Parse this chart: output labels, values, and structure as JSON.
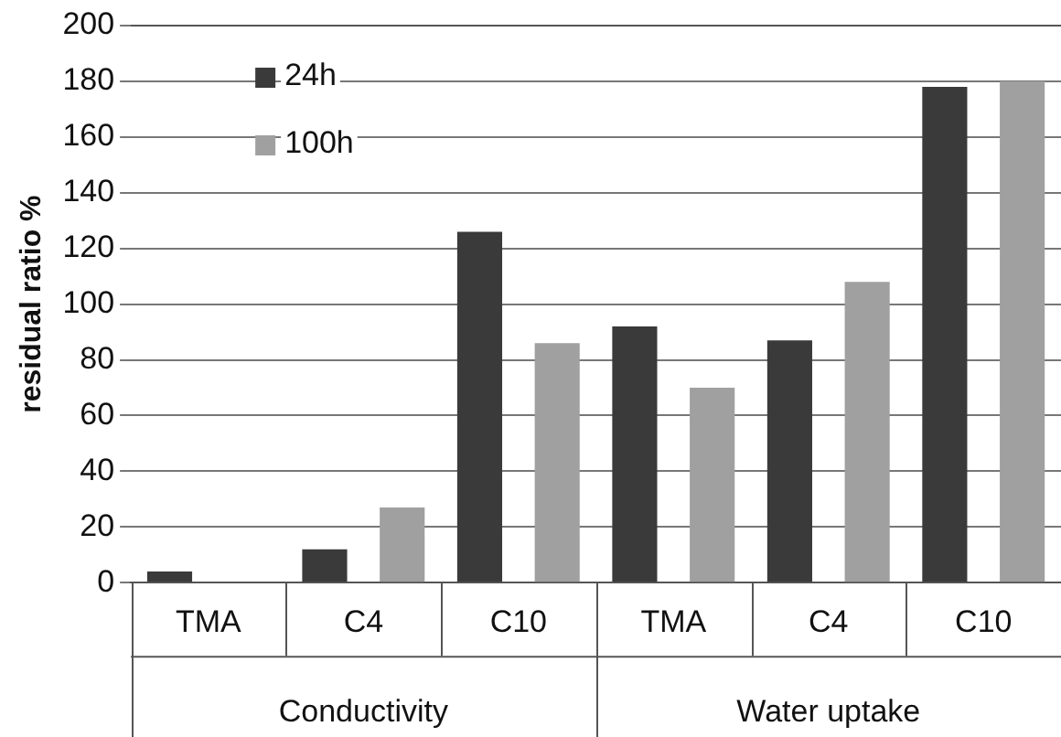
{
  "chart_data": {
    "type": "bar",
    "ylabel": "residual ratio %",
    "categories": [
      "TMA",
      "C4",
      "C10",
      "TMA",
      "C4",
      "C10"
    ],
    "series": [
      {
        "name": "24h",
        "color": "#3a3a3a",
        "values": [
          4,
          12,
          126,
          92,
          87,
          178
        ]
      },
      {
        "name": "100h",
        "color": "#a0a0a0",
        "values": [
          0,
          27,
          86,
          70,
          108,
          180
        ]
      }
    ],
    "ylim": [
      0,
      200
    ],
    "yticks": [
      0,
      20,
      40,
      60,
      80,
      100,
      120,
      140,
      160,
      180,
      200
    ],
    "grid": "y",
    "legend": "top left",
    "annotations": [
      "Conductivity",
      "Water uptake"
    ]
  }
}
